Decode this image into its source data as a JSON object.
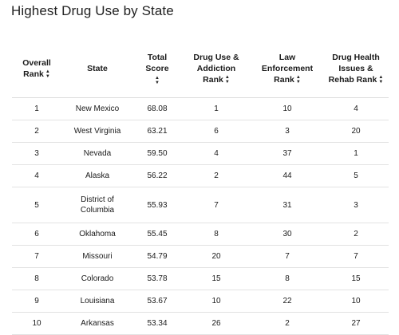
{
  "title": "Highest Drug Use by State",
  "columns": {
    "overall_rank": [
      "Overall",
      "Rank"
    ],
    "state": "State",
    "total_score": [
      "Total",
      "Score"
    ],
    "drug_use": [
      "Drug Use &",
      "Addiction",
      "Rank"
    ],
    "law": [
      "Law",
      "Enforcement",
      "Rank"
    ],
    "health": [
      "Drug Health",
      "Issues &",
      "Rehab Rank"
    ]
  },
  "icons": {
    "sort": "sort-updown-icon"
  },
  "rows": [
    {
      "rank": "1",
      "state": [
        "New Mexico"
      ],
      "score": "68.08",
      "drug": "1",
      "law": "10",
      "health": "4"
    },
    {
      "rank": "2",
      "state": [
        "West Virginia"
      ],
      "score": "63.21",
      "drug": "6",
      "law": "3",
      "health": "20"
    },
    {
      "rank": "3",
      "state": [
        "Nevada"
      ],
      "score": "59.50",
      "drug": "4",
      "law": "37",
      "health": "1"
    },
    {
      "rank": "4",
      "state": [
        "Alaska"
      ],
      "score": "56.22",
      "drug": "2",
      "law": "44",
      "health": "5"
    },
    {
      "rank": "5",
      "state": [
        "District of",
        "Columbia"
      ],
      "score": "55.93",
      "drug": "7",
      "law": "31",
      "health": "3"
    },
    {
      "rank": "6",
      "state": [
        "Oklahoma"
      ],
      "score": "55.45",
      "drug": "8",
      "law": "30",
      "health": "2"
    },
    {
      "rank": "7",
      "state": [
        "Missouri"
      ],
      "score": "54.79",
      "drug": "20",
      "law": "7",
      "health": "7"
    },
    {
      "rank": "8",
      "state": [
        "Colorado"
      ],
      "score": "53.78",
      "drug": "15",
      "law": "8",
      "health": "15"
    },
    {
      "rank": "9",
      "state": [
        "Louisiana"
      ],
      "score": "53.67",
      "drug": "10",
      "law": "22",
      "health": "10"
    },
    {
      "rank": "10",
      "state": [
        "Arkansas"
      ],
      "score": "53.34",
      "drug": "26",
      "law": "2",
      "health": "27"
    }
  ]
}
